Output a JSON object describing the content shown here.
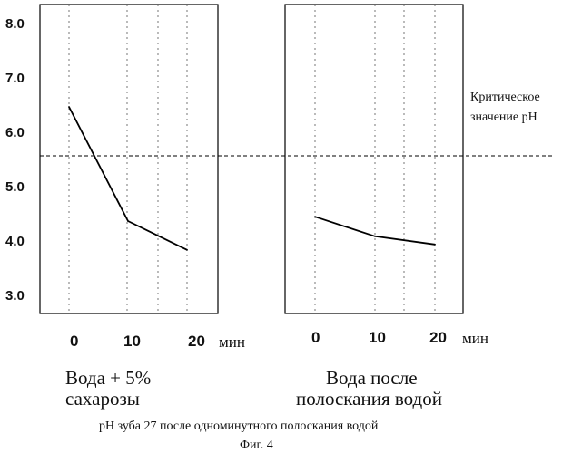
{
  "chart_data": {
    "type": "line",
    "y_ticks": [
      "8.0",
      "7.0",
      "6.0",
      "5.0",
      "4.0",
      "3.0"
    ],
    "ylim": [
      3.0,
      8.0
    ],
    "x_unit": "мин",
    "threshold": {
      "value": 5.55,
      "label_lines": [
        "Критическое",
        "значение pH"
      ]
    },
    "panels": [
      {
        "title_lines": [
          "Вода + 5%",
          "сахарозы"
        ],
        "x": [
          0,
          10,
          20
        ],
        "x_tick_labels": [
          "0",
          "10",
          "20"
        ],
        "values": [
          6.45,
          4.35,
          3.82
        ]
      },
      {
        "title_lines": [
          "Вода после",
          "полоскания водой"
        ],
        "x": [
          0,
          10,
          20
        ],
        "x_tick_labels": [
          "0",
          "10",
          "20"
        ],
        "values": [
          4.43,
          4.07,
          3.92
        ]
      }
    ],
    "caption": "pH зуба 27 после  одноминутного  полоскания водой",
    "figure_label": "Фиг. 4"
  }
}
